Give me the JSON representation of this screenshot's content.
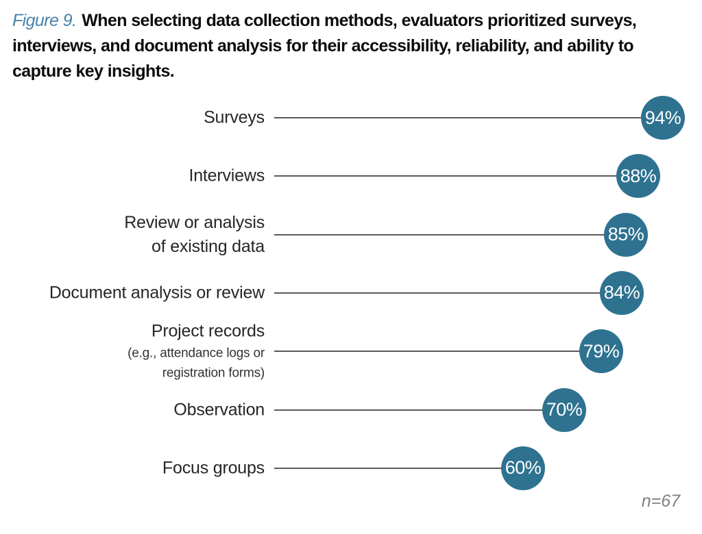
{
  "title": {
    "prefix": "Figure 9.",
    "text": "When selecting data collection methods, evaluators prioritized surveys, interviews, and document analysis for their accessibility, reliability, and ability to capture key insights."
  },
  "colors": {
    "bubble_fill": "#2E7290",
    "bubble_text": "#FFFFFF",
    "stem_line": "#595959",
    "figure_label_text": "#4683A9",
    "note_text": "#808080",
    "category_label_text": "#262626",
    "title_text": "#0D0D0D"
  },
  "chart_data": {
    "type": "bar",
    "variant": "lollipop",
    "orientation": "horizontal",
    "title": "Figure 9. When selecting data collection methods, evaluators prioritized surveys, interviews, and document analysis for their accessibility, reliability, and ability to capture key insights.",
    "categories": [
      "Surveys",
      "Interviews",
      "Review or analysis of existing data",
      "Document analysis or review",
      "Project records (e.g., attendance logs or registration forms)",
      "Observation",
      "Focus groups"
    ],
    "category_display": [
      [
        {
          "text": "Surveys",
          "small": false
        }
      ],
      [
        {
          "text": "Interviews",
          "small": false
        }
      ],
      [
        {
          "text": "Review or analysis",
          "small": false
        },
        {
          "text": "of existing data",
          "small": false
        }
      ],
      [
        {
          "text": "Document analysis or review",
          "small": false
        }
      ],
      [
        {
          "text": "Project records",
          "small": false
        },
        {
          "text": "(e.g., attendance logs or",
          "small": true
        },
        {
          "text": "registration forms)",
          "small": true
        }
      ],
      [
        {
          "text": "Observation",
          "small": false
        }
      ],
      [
        {
          "text": "Focus groups",
          "small": false
        }
      ]
    ],
    "values": [
      94,
      88,
      85,
      84,
      79,
      70,
      60
    ],
    "value_labels": [
      "94%",
      "88%",
      "85%",
      "84%",
      "79%",
      "70%",
      "60%"
    ],
    "unit": "%",
    "xlim": [
      0,
      100
    ],
    "grid": false,
    "legend": false,
    "sample_note": "n=67"
  }
}
